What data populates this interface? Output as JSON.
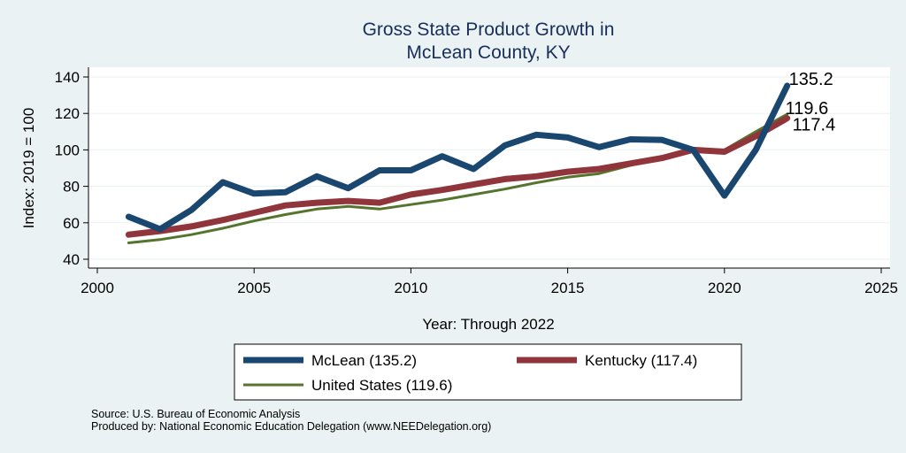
{
  "chart_data": {
    "type": "line",
    "title": [
      "Gross State Product Growth in",
      "McLean County, KY"
    ],
    "xlabel": "Year: Through 2022",
    "ylabel": "Index: 2019 = 100",
    "xlim": [
      2000,
      2025
    ],
    "ylim": [
      40,
      140
    ],
    "xticks": [
      2000,
      2005,
      2010,
      2015,
      2020,
      2025
    ],
    "yticks": [
      40,
      60,
      80,
      100,
      120,
      140
    ],
    "x": [
      2001,
      2002,
      2003,
      2004,
      2005,
      2006,
      2007,
      2008,
      2009,
      2010,
      2011,
      2012,
      2013,
      2014,
      2015,
      2016,
      2017,
      2018,
      2019,
      2020,
      2021,
      2022
    ],
    "series": [
      {
        "name": "McLean",
        "legend": "McLean  (135.2)",
        "end_label": "135.2",
        "color": "#1a476f",
        "values": [
          63.3,
          56.5,
          67.0,
          82.3,
          76.0,
          76.8,
          85.5,
          79.0,
          88.8,
          88.8,
          96.5,
          89.5,
          102.5,
          108.3,
          106.8,
          101.5,
          105.8,
          105.5,
          100.0,
          74.9,
          100.0,
          135.2
        ]
      },
      {
        "name": "Kentucky",
        "legend": "Kentucky (117.4)",
        "end_label": "117.4",
        "color": "#90353b",
        "values": [
          53.5,
          55.5,
          58.0,
          61.5,
          65.5,
          69.5,
          71.0,
          72.0,
          71.0,
          75.5,
          78.0,
          81.0,
          84.0,
          85.5,
          88.0,
          89.5,
          92.5,
          95.5,
          100.0,
          99.0,
          107.5,
          117.4
        ]
      },
      {
        "name": "United States",
        "legend": "United States (119.6)",
        "end_label": "119.6",
        "color": "#55752f",
        "values": [
          49.0,
          50.8,
          53.5,
          57.0,
          61.0,
          64.5,
          67.5,
          69.0,
          67.5,
          70.0,
          72.5,
          75.5,
          78.5,
          82.0,
          85.0,
          87.0,
          91.5,
          96.0,
          100.0,
          100.0,
          110.0,
          119.6
        ]
      }
    ],
    "grid": true,
    "legend_position": "bottom"
  },
  "source_lines": [
    "Source: U.S. Bureau of Economic Analysis",
    "Produced by: National Economic Education Delegation (www.NEEDelegation.org)"
  ]
}
